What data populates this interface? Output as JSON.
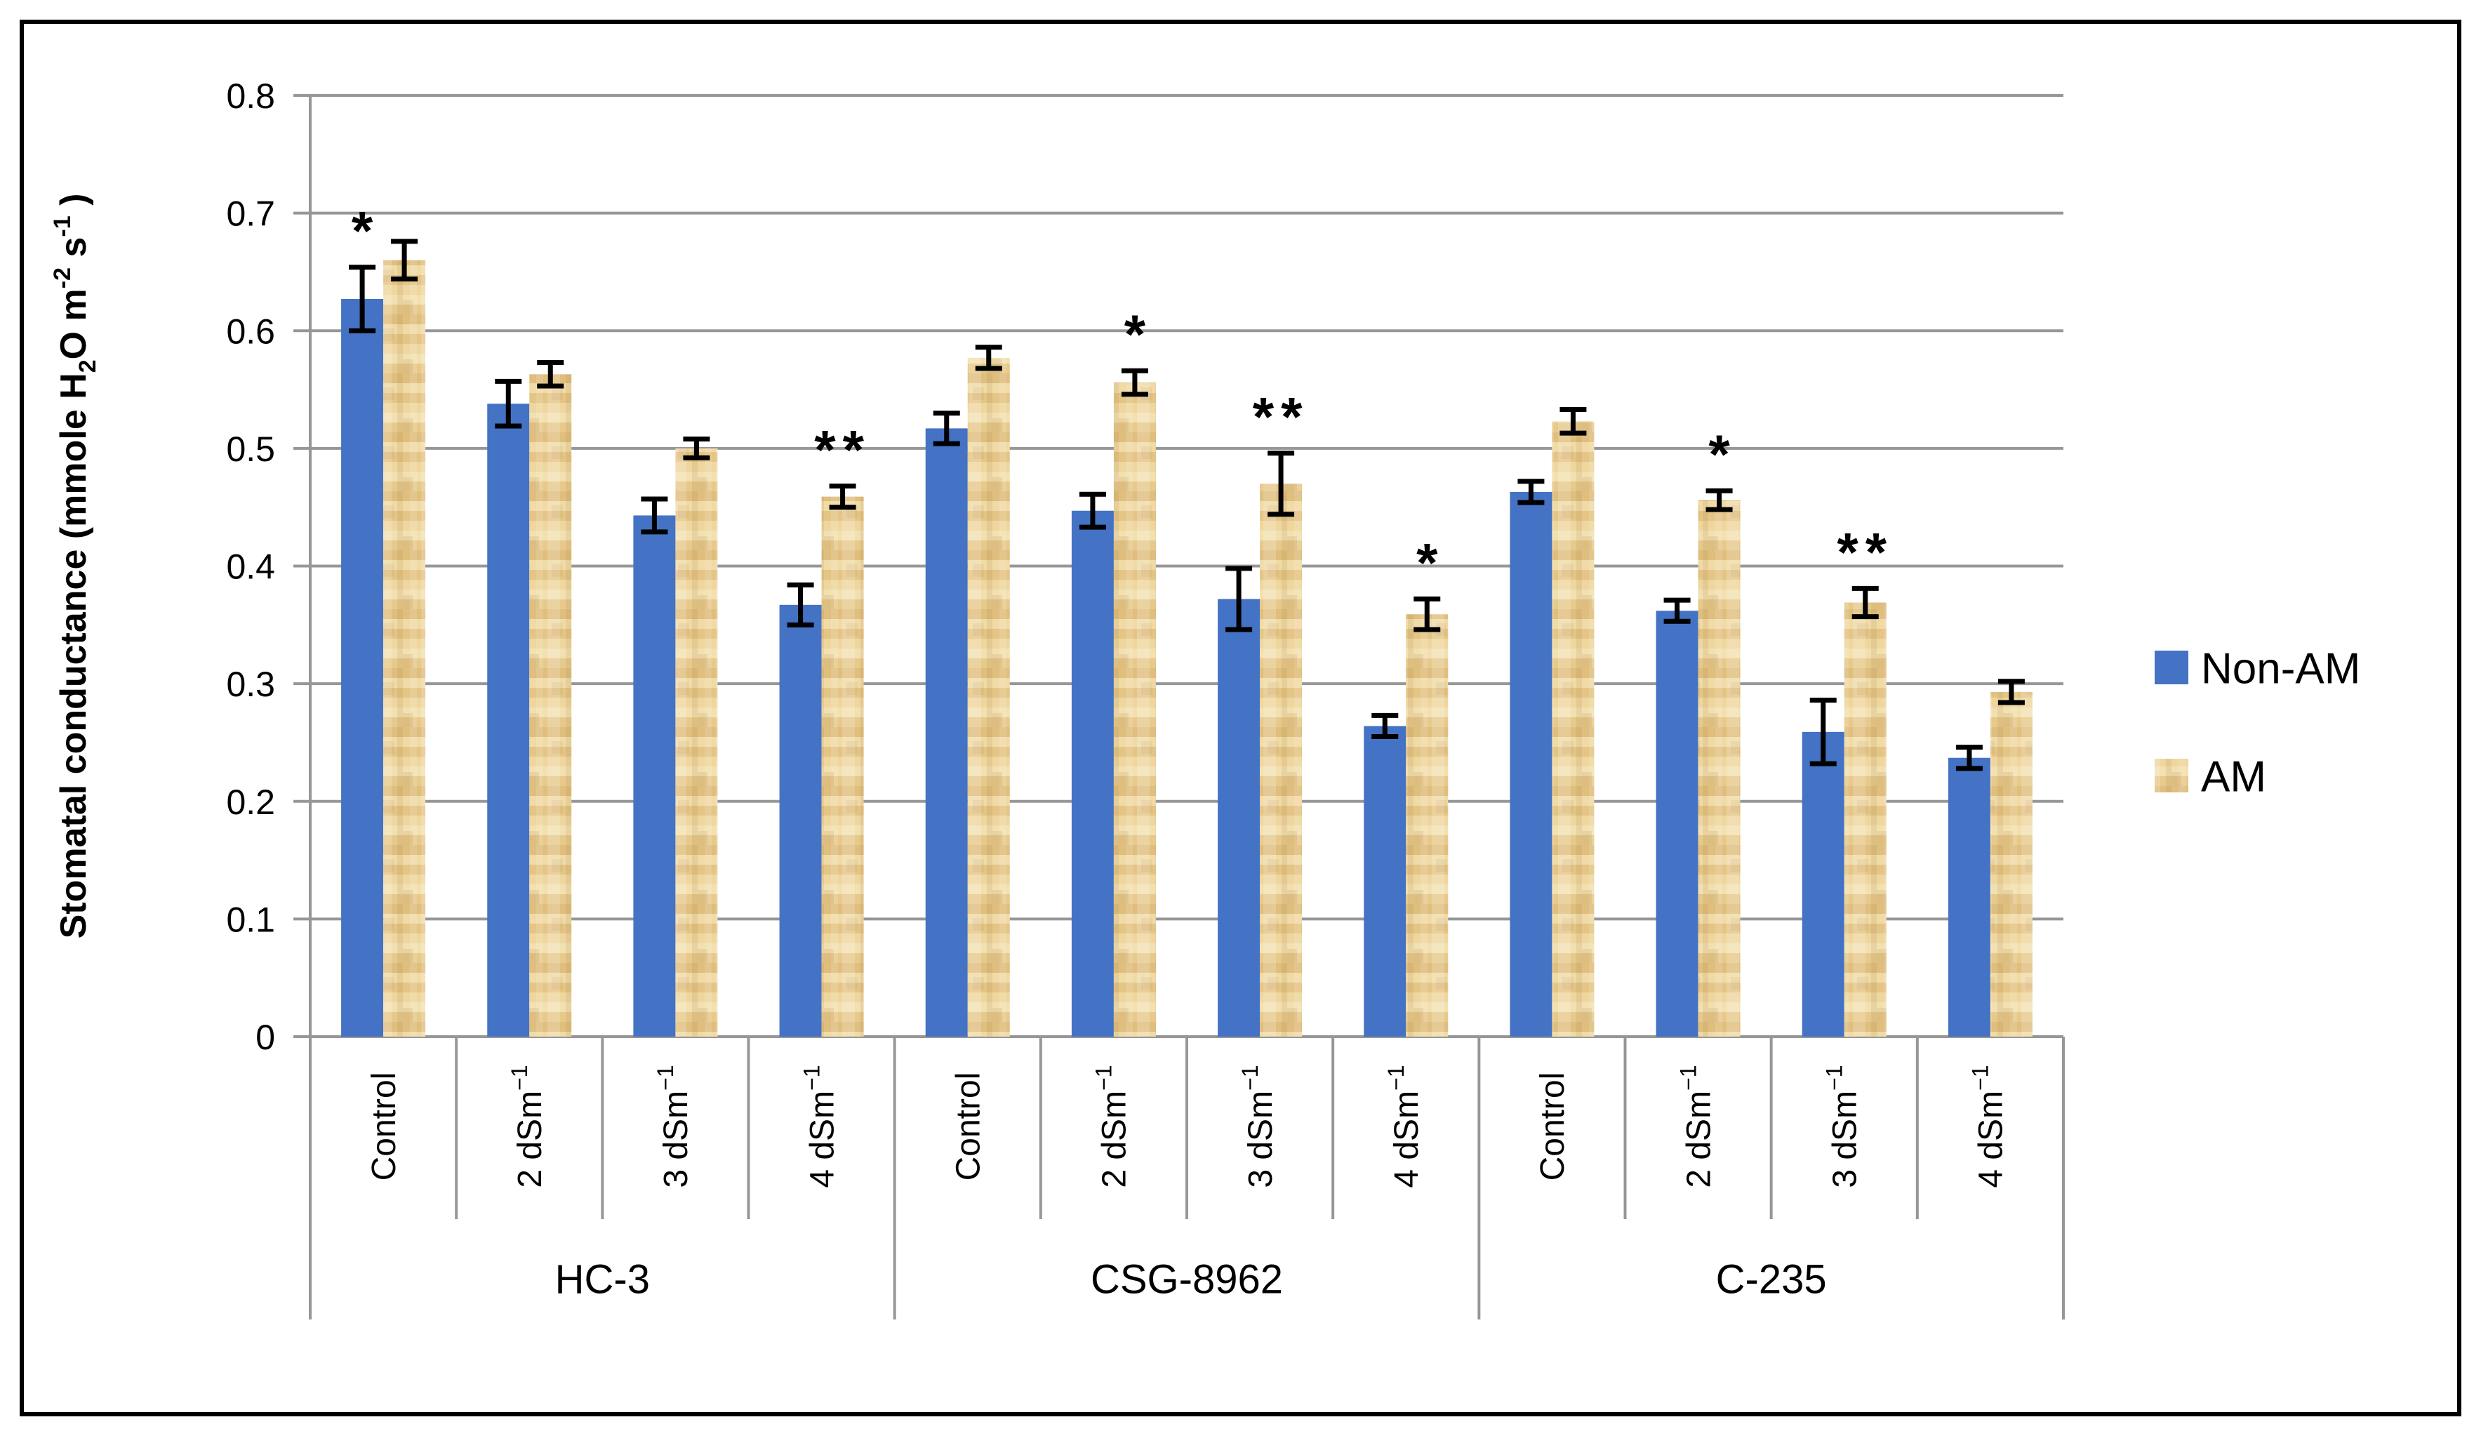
{
  "figure": {
    "background_color": "#ffffff",
    "border_color": "#000000"
  },
  "legend": {
    "items": [
      {
        "label": "Non-AM",
        "swatch": "solid-blue"
      },
      {
        "label": "AM",
        "swatch": "tan-texture"
      }
    ]
  },
  "chart_data": {
    "type": "bar",
    "title": "",
    "ylabel_text": "Stomatal conductance (mmole H2O m-2 s-1 )",
    "ylabel_parts": [
      {
        "t": "Stomatal conductance (mmole H"
      },
      {
        "t": "2",
        "script": "sub"
      },
      {
        "t": "O m"
      },
      {
        "t": "-2",
        "script": "sup"
      },
      {
        "t": " s"
      },
      {
        "t": "-1",
        "script": "sup"
      },
      {
        "t": " )"
      }
    ],
    "ylim": [
      0,
      0.8
    ],
    "ytick_interval": 0.1,
    "ytick_labels": [
      "0",
      "0.1",
      "0.2",
      "0.3",
      "0.4",
      "0.5",
      "0.6",
      "0.7",
      "0.8"
    ],
    "grid": true,
    "gridline_color": "#979797",
    "axis_color": "#979797",
    "error_bar_color": "#000000",
    "annotation_color": "#000000",
    "legend_position": "right-middle",
    "series": [
      {
        "name": "Non-AM",
        "color": "#4472C4",
        "style": "solid"
      },
      {
        "name": "AM",
        "color": "#EACD92",
        "style": "textured-tan"
      }
    ],
    "groups": [
      {
        "label": "HC-3",
        "items": [
          {
            "category": "Control",
            "category_sup": "",
            "non_am": {
              "value": 0.627,
              "error": 0.027
            },
            "am": {
              "value": 0.66,
              "error": 0.016
            },
            "star": {
              "text": "*",
              "on": "non_am"
            }
          },
          {
            "category": "2 dSm",
            "category_sup": "−1",
            "non_am": {
              "value": 0.538,
              "error": 0.019
            },
            "am": {
              "value": 0.563,
              "error": 0.01
            }
          },
          {
            "category": "3 dSm",
            "category_sup": "−1",
            "non_am": {
              "value": 0.443,
              "error": 0.014
            },
            "am": {
              "value": 0.5,
              "error": 0.008
            }
          },
          {
            "category": "4 dSm",
            "category_sup": "−1",
            "non_am": {
              "value": 0.367,
              "error": 0.017
            },
            "am": {
              "value": 0.459,
              "error": 0.009
            },
            "star": {
              "text": "**",
              "on": "am"
            }
          }
        ]
      },
      {
        "label": "CSG-8962",
        "items": [
          {
            "category": "Control",
            "category_sup": "",
            "non_am": {
              "value": 0.517,
              "error": 0.013
            },
            "am": {
              "value": 0.577,
              "error": 0.009
            }
          },
          {
            "category": "2 dSm",
            "category_sup": "−1",
            "non_am": {
              "value": 0.447,
              "error": 0.014
            },
            "am": {
              "value": 0.556,
              "error": 0.01
            },
            "star": {
              "text": "*",
              "on": "am"
            }
          },
          {
            "category": "3 dSm",
            "category_sup": "−1",
            "non_am": {
              "value": 0.372,
              "error": 0.026
            },
            "am": {
              "value": 0.47,
              "error": 0.026
            },
            "star": {
              "text": "**",
              "on": "am"
            }
          },
          {
            "category": "4 dSm",
            "category_sup": "−1",
            "non_am": {
              "value": 0.264,
              "error": 0.009
            },
            "am": {
              "value": 0.359,
              "error": 0.013
            },
            "star": {
              "text": "*",
              "on": "am"
            }
          }
        ]
      },
      {
        "label": "C-235",
        "items": [
          {
            "category": "Control",
            "category_sup": "",
            "non_am": {
              "value": 0.463,
              "error": 0.009
            },
            "am": {
              "value": 0.523,
              "error": 0.01
            }
          },
          {
            "category": "2 dSm",
            "category_sup": "−1",
            "non_am": {
              "value": 0.362,
              "error": 0.009
            },
            "am": {
              "value": 0.456,
              "error": 0.008
            },
            "star": {
              "text": "*",
              "on": "am"
            }
          },
          {
            "category": "3 dSm",
            "category_sup": "−1",
            "non_am": {
              "value": 0.259,
              "error": 0.027
            },
            "am": {
              "value": 0.369,
              "error": 0.012
            },
            "star": {
              "text": "**",
              "on": "am"
            }
          },
          {
            "category": "4 dSm",
            "category_sup": "−1",
            "non_am": {
              "value": 0.237,
              "error": 0.009
            },
            "am": {
              "value": 0.293,
              "error": 0.009
            }
          }
        ]
      }
    ]
  }
}
